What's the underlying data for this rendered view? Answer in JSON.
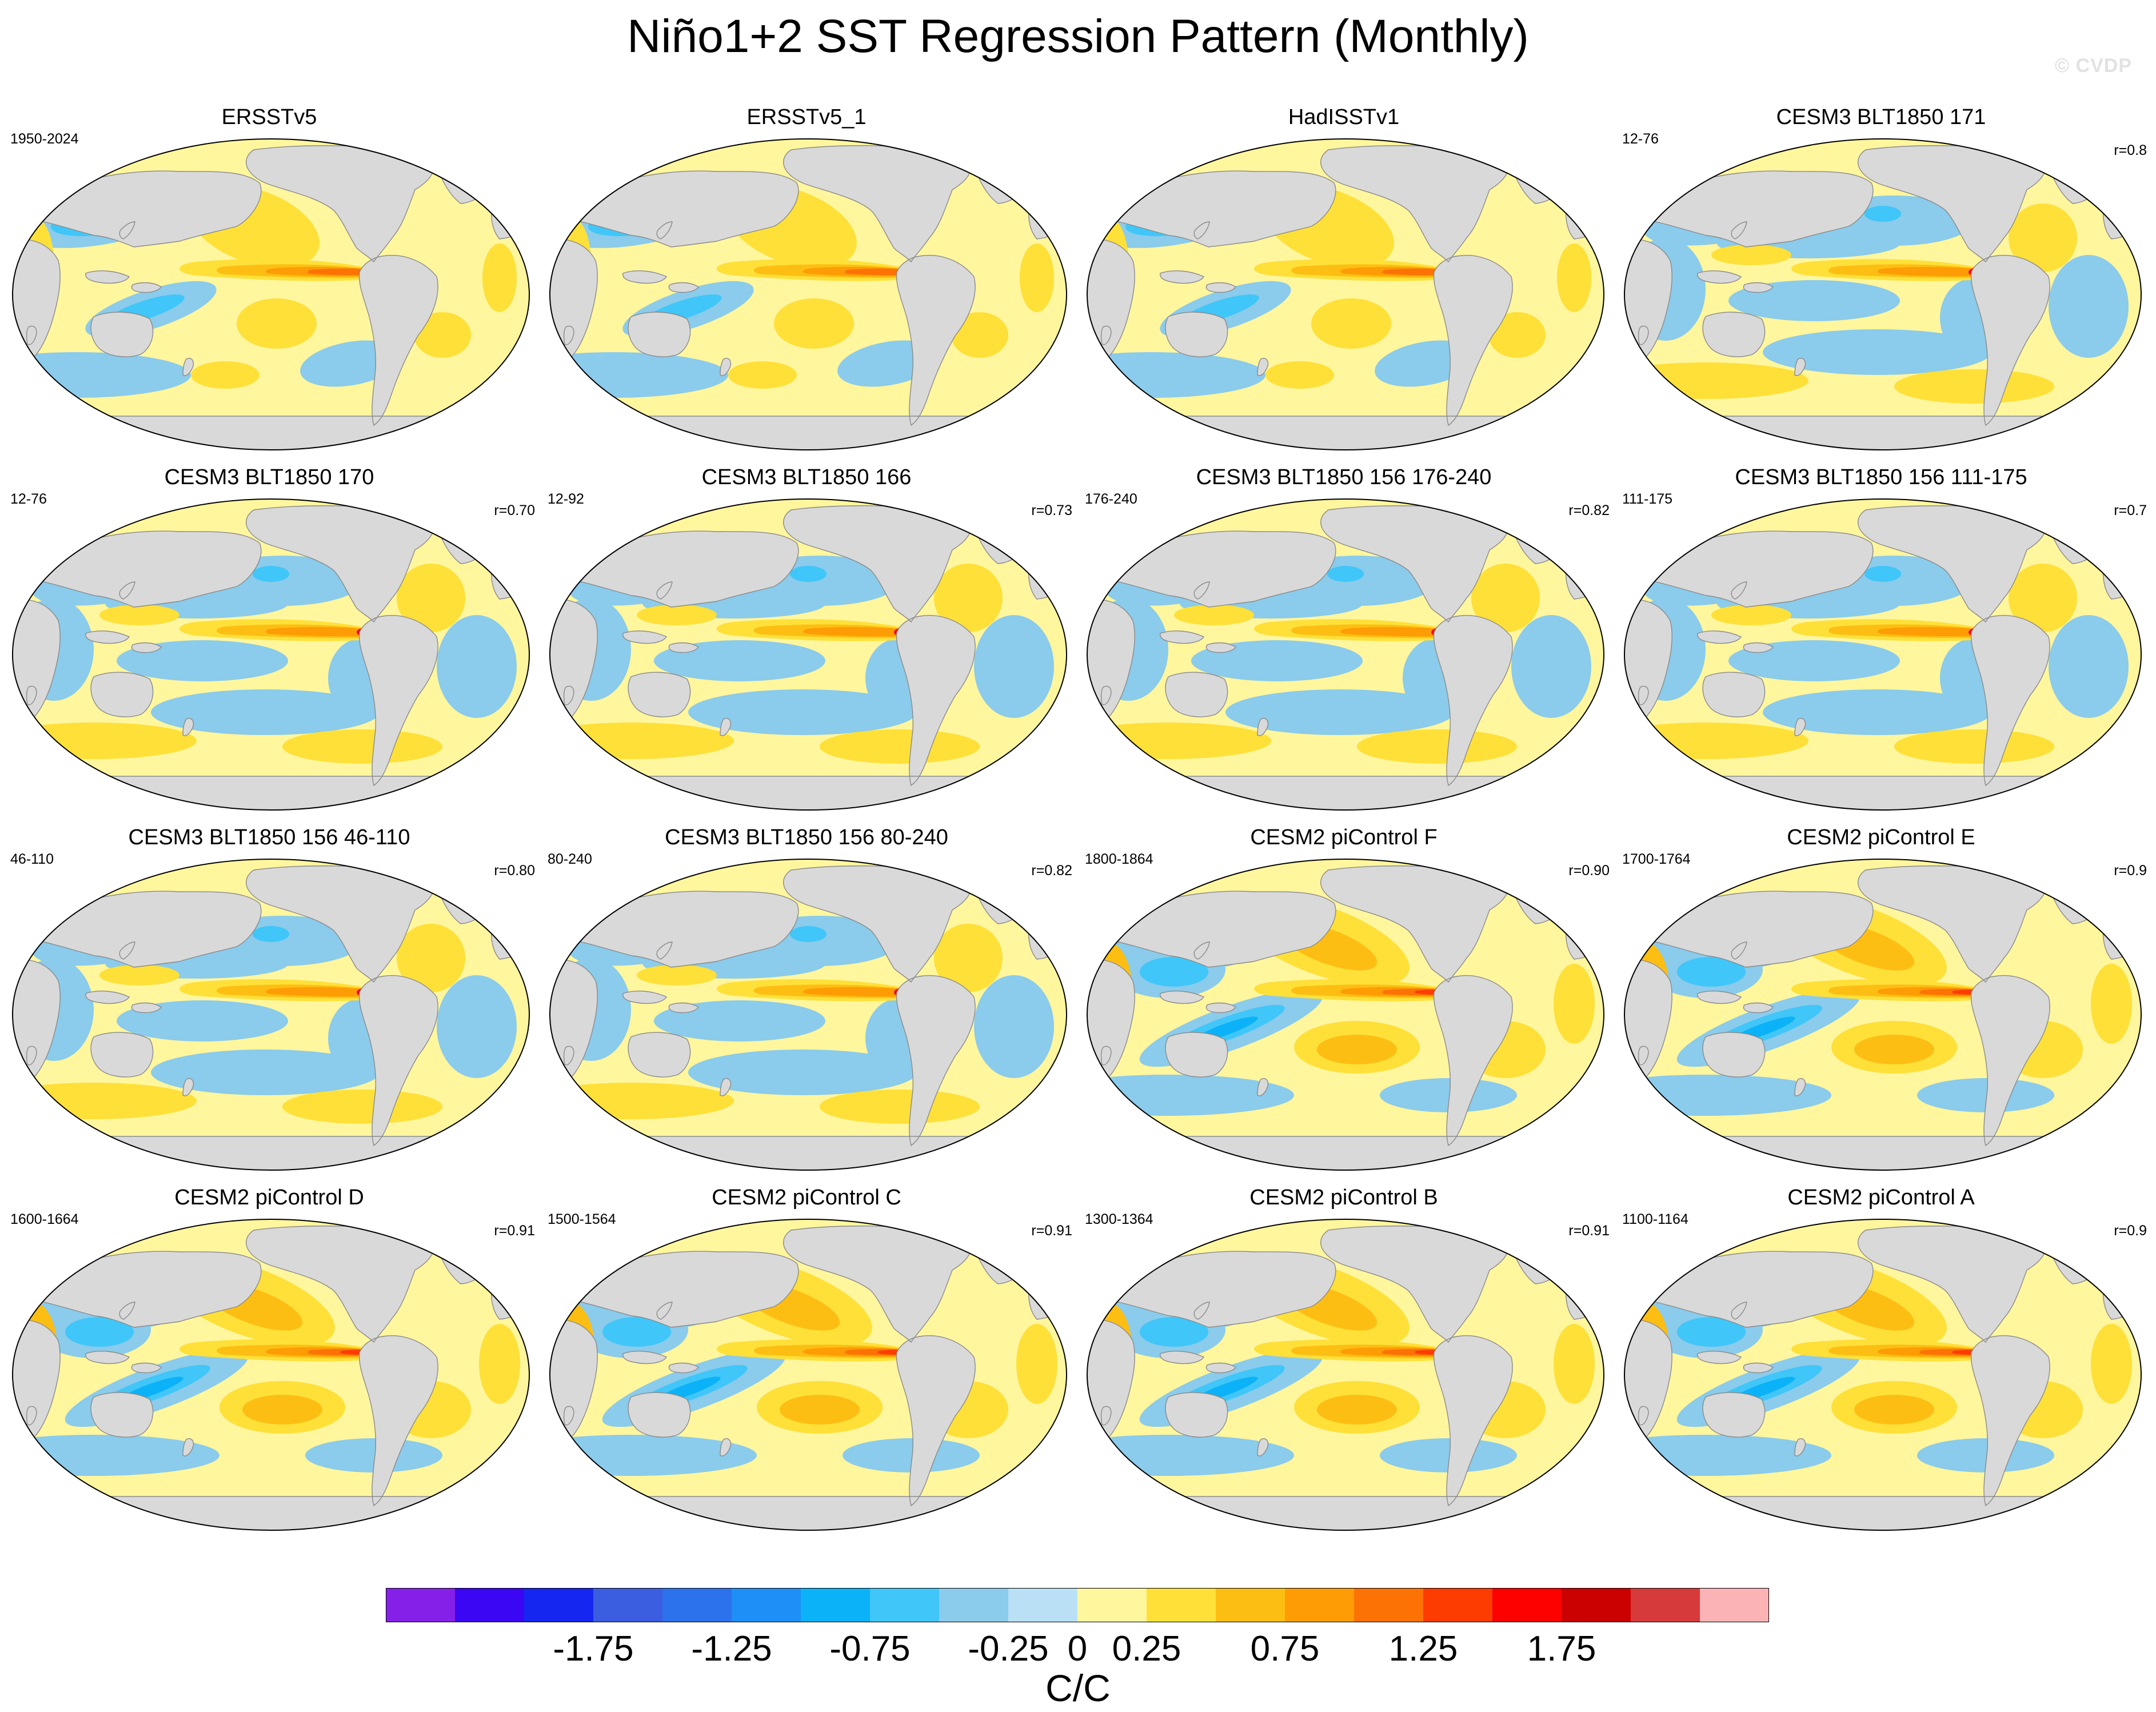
{
  "title": "Niño1+2 SST Regression Pattern (Monthly)",
  "watermark": "© CVDP",
  "chart_data": {
    "type": "map-panel-grid",
    "title": "Niño1+2 SST Regression Pattern (Monthly)",
    "projection": "Robinson (Pacific-centered)",
    "panels": [
      {
        "title": "ERSSTv5",
        "period": "1950-2024",
        "corr": "",
        "pattern": "obs"
      },
      {
        "title": "ERSSTv5_1",
        "period": "",
        "corr": "",
        "pattern": "obs"
      },
      {
        "title": "HadISSTv1",
        "period": "",
        "corr": "",
        "pattern": "obs"
      },
      {
        "title": "CESM3 BLT1850 171",
        "period": "12-76",
        "corr": "r=0.8",
        "pattern": "cesm3"
      },
      {
        "title": "CESM3 BLT1850 170",
        "period": "12-76",
        "corr": "r=0.70",
        "pattern": "cesm3"
      },
      {
        "title": "CESM3 BLT1850 166",
        "period": "12-92",
        "corr": "r=0.73",
        "pattern": "cesm3"
      },
      {
        "title": "CESM3 BLT1850 156 176-240",
        "period": "176-240",
        "corr": "r=0.82",
        "pattern": "cesm3"
      },
      {
        "title": "CESM3 BLT1850 156 111-175",
        "period": "111-175",
        "corr": "r=0.7",
        "pattern": "cesm3"
      },
      {
        "title": "CESM3 BLT1850 156 46-110",
        "period": "46-110",
        "corr": "r=0.80",
        "pattern": "cesm3"
      },
      {
        "title": "CESM3 BLT1850 156 80-240",
        "period": "80-240",
        "corr": "r=0.82",
        "pattern": "cesm3"
      },
      {
        "title": "CESM2 piControl F",
        "period": "1800-1864",
        "corr": "r=0.90",
        "pattern": "cesm2"
      },
      {
        "title": "CESM2 piControl E",
        "period": "1700-1764",
        "corr": "r=0.9",
        "pattern": "cesm2"
      },
      {
        "title": "CESM2 piControl D",
        "period": "1600-1664",
        "corr": "r=0.91",
        "pattern": "cesm2"
      },
      {
        "title": "CESM2 piControl C",
        "period": "1500-1564",
        "corr": "r=0.91",
        "pattern": "cesm2"
      },
      {
        "title": "CESM2 piControl B",
        "period": "1300-1364",
        "corr": "r=0.91",
        "pattern": "cesm2"
      },
      {
        "title": "CESM2 piControl A",
        "period": "1100-1164",
        "corr": "r=0.9",
        "pattern": "cesm2"
      }
    ],
    "colorbar": {
      "units": "C/C",
      "tick_labels": [
        "-1.75",
        "-1.25",
        "-0.75",
        "-0.25",
        "0",
        "0.25",
        "0.75",
        "1.25",
        "1.75"
      ],
      "levels": [
        -2.0,
        -1.75,
        -1.5,
        -1.25,
        -1.0,
        -0.75,
        -0.5,
        -0.25,
        0,
        0.25,
        0.5,
        0.75,
        1.0,
        1.25,
        1.5,
        1.75,
        2.0
      ],
      "colors": [
        "#8520e8",
        "#3b06f3",
        "#1426f0",
        "#3b5ee0",
        "#2c72ec",
        "#1e8ff6",
        "#0cb2f8",
        "#40c6f8",
        "#8bcbeb",
        "#b9e0f5",
        "#fff69e",
        "#fee039",
        "#fdbe13",
        "#fd9c04",
        "#fc7205",
        "#fc3c00",
        "#fc0100",
        "#cb0001",
        "#d73a3b",
        "#fcb3b5"
      ]
    }
  }
}
